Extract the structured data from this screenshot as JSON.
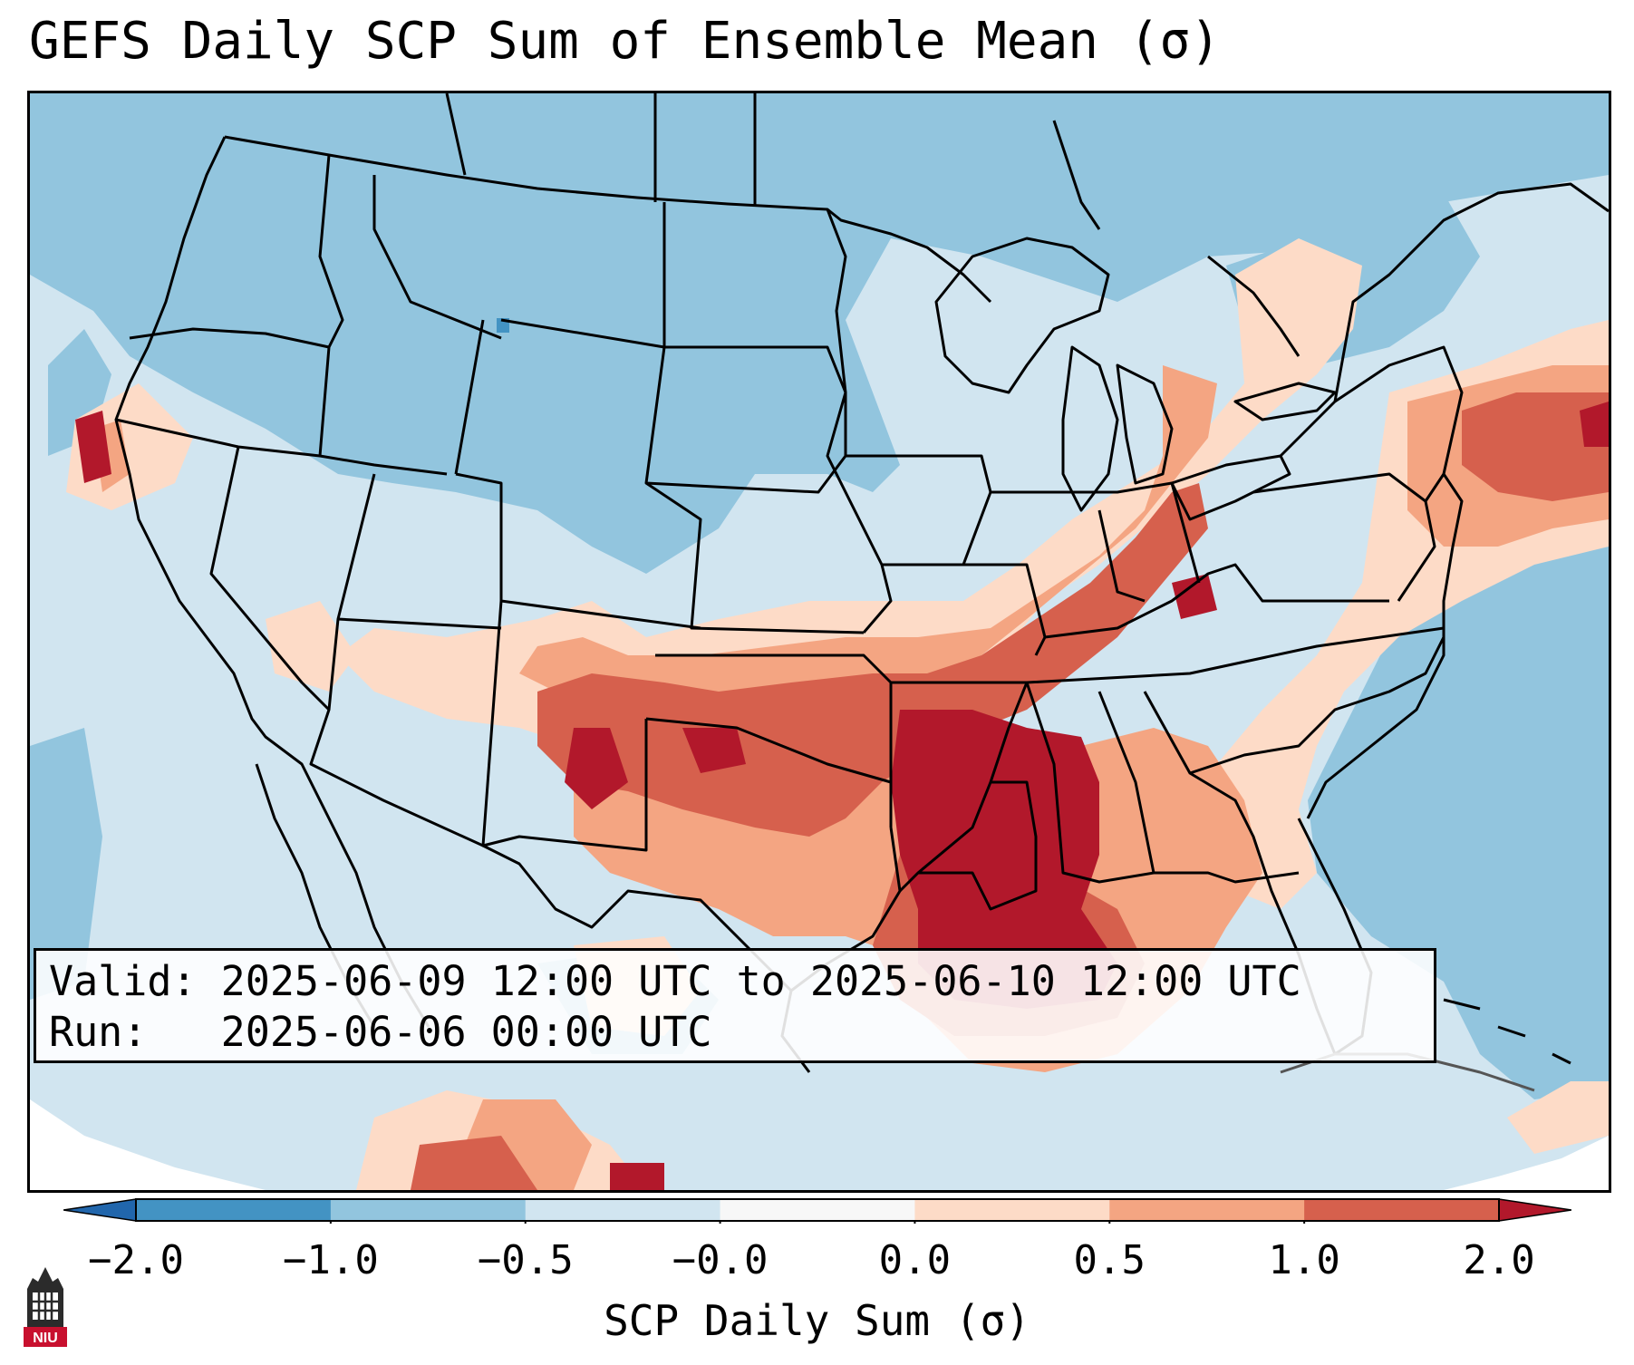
{
  "title": "GEFS Daily SCP Sum of Ensemble Mean (σ)",
  "info": {
    "valid_line": "Valid: 2025-06-09 12:00 UTC to 2025-06-10 12:00 UTC",
    "run_line": "Run:   2025-06-06 00:00 UTC"
  },
  "colorbar": {
    "label": "SCP Daily Sum (σ)",
    "ticks": [
      "−2.0",
      "−1.0",
      "−0.5",
      "−0.0",
      "0.0",
      "0.5",
      "1.0",
      "2.0"
    ],
    "bins": [
      {
        "range": "-2.0 to -1.0",
        "color": "#4393c3"
      },
      {
        "range": "-1.0 to -0.5",
        "color": "#92c5de"
      },
      {
        "range": "-0.5 to -0.0",
        "color": "#d1e5f0"
      },
      {
        "range": "-0.0 to 0.0",
        "color": "#f7f7f7"
      },
      {
        "range": "0.0 to 0.5",
        "color": "#fddbc7"
      },
      {
        "range": "0.5 to 1.0",
        "color": "#f4a582"
      },
      {
        "range": "1.0 to 2.0",
        "color": "#d6604d"
      }
    ],
    "under_color": "#2166ac",
    "over_color": "#b2182b"
  },
  "logo": {
    "text": "NIU",
    "icon": "university-tower-icon"
  }
}
